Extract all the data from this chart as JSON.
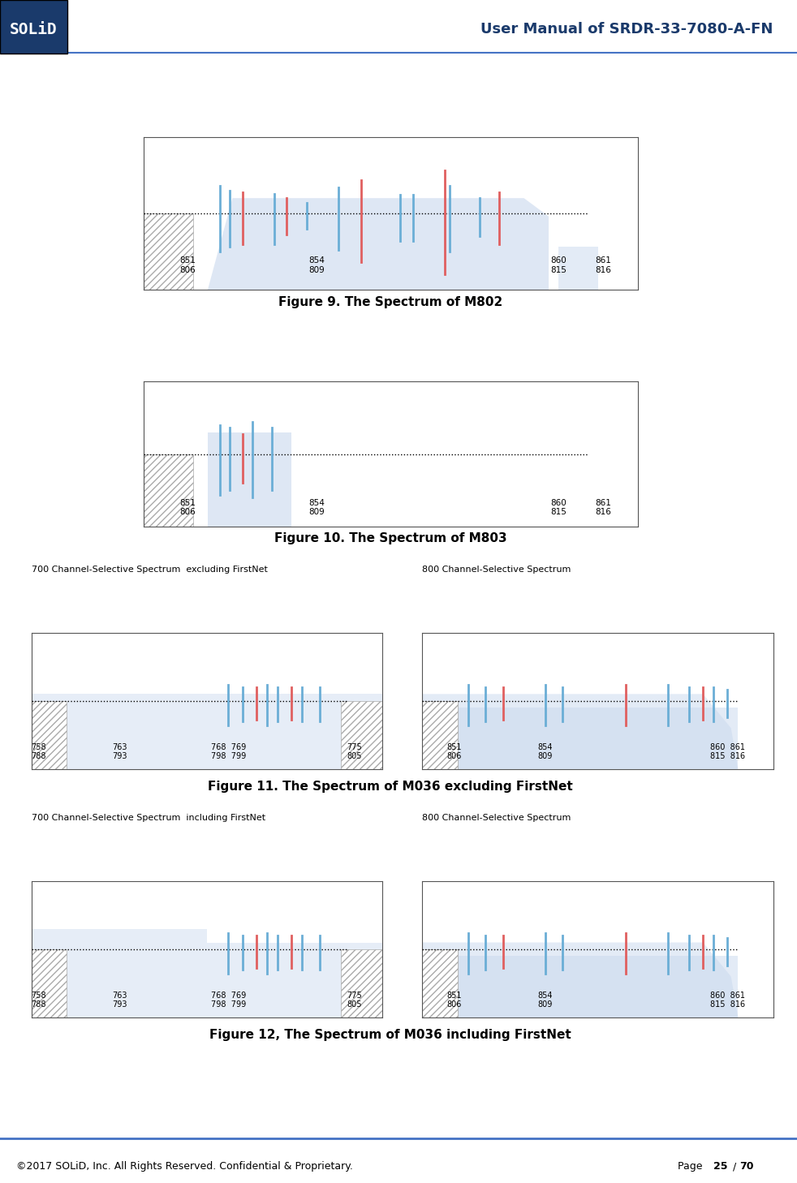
{
  "header_title": "User Manual of SRDR-33-7080-A-FN",
  "footer_text": "©2017 SOLiD, Inc. All Rights Reserved. Confidential & Proprietary.",
  "footer_page": "Page 25 / 70",
  "solid_bg": "#1a3a6b",
  "header_line_color": "#4472c4",
  "fig9_caption": "Figure 9. The Spectrum of M802",
  "fig10_caption": "Figure 10. The Spectrum of M803",
  "fig11_caption": "Figure 11. The Spectrum of M036 excluding FirstNet",
  "fig12_caption": "Figure 12, The Spectrum of M036 including FirstNet",
  "fig11_label_left": "700 Channel-Selective Spectrum  excluding FirstNet",
  "fig11_label_right": "800 Channel-Selective Spectrum",
  "fig12_label_left": "700 Channel-Selective Spectrum  including FirstNet",
  "fig12_label_right": "800 Channel-Selective Spectrum",
  "bg_color": "#ffffff",
  "plot_bg": "#f0f4fa",
  "hatch_color": "#aaaaaa",
  "blue_bar": "#6baed6",
  "red_bar": "#e06060",
  "shape_fill": "#c8d8ee",
  "dotted_line_color": "#333333",
  "border_color": "#555555"
}
